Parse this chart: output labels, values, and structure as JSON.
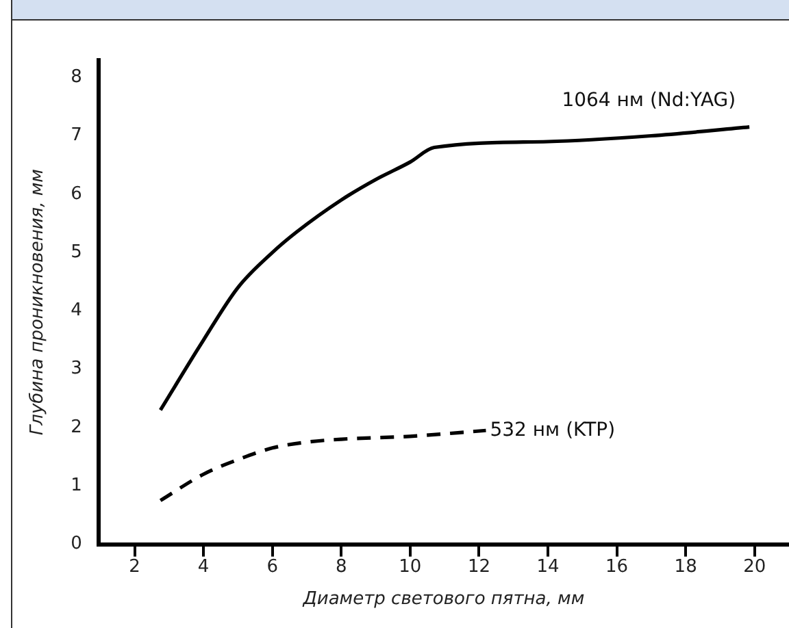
{
  "chart_data": {
    "type": "line",
    "xlabel": "Диаметр светового пятна, мм",
    "ylabel": "Глубина проникновения, мм",
    "xlim": [
      0.95,
      21
    ],
    "xticks": [
      2,
      4,
      6,
      8,
      10,
      12,
      14,
      16,
      18,
      20
    ],
    "ylim": [
      0,
      8.3
    ],
    "yticks": [
      0,
      1,
      2,
      3,
      4,
      5,
      6,
      7,
      8
    ],
    "grid": false,
    "legend": false,
    "marker": "none",
    "series": [
      {
        "name": "1064 нм (Nd:YAG)",
        "color": "#000000",
        "line_style": "solid",
        "x": [
          2.75,
          4,
          5,
          6,
          6.7,
          8,
          9,
          10,
          10.7,
          14,
          17,
          19.85
        ],
        "values": [
          2.3,
          3.5,
          4.4,
          5.0,
          5.35,
          5.9,
          6.25,
          6.55,
          6.8,
          6.9,
          7.0,
          7.15
        ]
      },
      {
        "name": "532 нм (KTP)",
        "color": "#000000",
        "line_style": "dashed",
        "x": [
          2.75,
          4,
          5,
          6,
          7,
          8,
          10,
          12.2
        ],
        "values": [
          0.75,
          1.2,
          1.45,
          1.65,
          1.75,
          1.8,
          1.85,
          1.95
        ]
      }
    ]
  }
}
